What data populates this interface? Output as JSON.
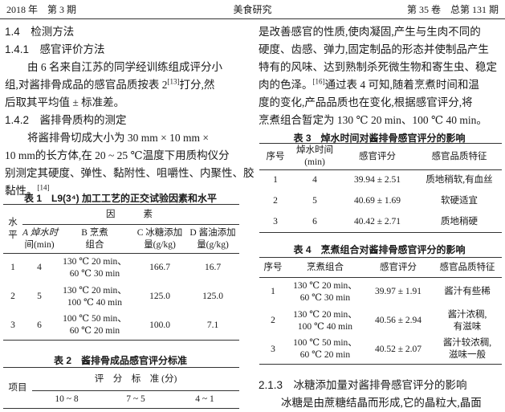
{
  "header": {
    "left": "2018 年　第 3 期",
    "center": "美食研究",
    "right": "第 35 卷　总第 131 期"
  },
  "left": {
    "s14": "1.4　检测方法",
    "s141": "1.4.1　感官评价方法",
    "p1": [
      "由 6 名来自江苏的同学经训练组成评分小",
      "组,对酱排骨成品的感官品质按表 2",
      "打分,然",
      "后取其平均值 ± 标准差。"
    ],
    "p1_ref": "[13]",
    "s142": "1.4.2　酱排骨质构的测定",
    "p2": [
      "将酱排骨切成大小为 30 mm × 10 mm ×",
      "10 mm的长方体,在 20 ~ 25 ℃温度下用质构仪分",
      "别测定其硬度、弹性、黏附性、咀嚼性、内聚性、胶",
      "黏性。"
    ],
    "p2_ref": "[14]"
  },
  "table1": {
    "caption": "表 1　L9(3⁴) 加工工艺的正交试验因素和水平",
    "col_level": "水平",
    "factor": "因　　素",
    "cols": [
      [
        "A 焯水时",
        "间(min)"
      ],
      [
        "B 烹煮",
        "组合"
      ],
      [
        "C 冰糖添加",
        "量(g/kg)"
      ],
      [
        "D 酱油添加",
        "量(g/kg)"
      ]
    ],
    "rows": [
      {
        "level": "1",
        "a": "4",
        "b": [
          "130 ℃ 20 min、",
          "60 ℃ 30 min"
        ],
        "c": "166.7",
        "d": "16.7"
      },
      {
        "level": "2",
        "a": "5",
        "b": [
          "130 ℃ 20 min、",
          "100 ℃ 40 min"
        ],
        "c": "125.0",
        "d": "125.0"
      },
      {
        "level": "3",
        "a": "6",
        "b": [
          "100 ℃ 50 min、",
          "60 ℃ 20 min"
        ],
        "c": "100.0",
        "d": "7.1"
      }
    ]
  },
  "table2": {
    "caption": "表 2　酱排骨成品感官评分标准",
    "col_item": "项目",
    "group": "评　分　标　准 (分)",
    "cols": [
      "10 ~ 8",
      "7 ~ 5",
      "4 ~ 1"
    ]
  },
  "right": {
    "p1": [
      "是改善感官的性质,使肉凝固,产生与生肉不同的",
      "硬度、齿感、弹力,固定制品的形态并使制品产生",
      "特有的风味、达到熟制杀死微生物和寄生虫、稳定",
      "肉的色泽。",
      "通过表 4 可知,随着烹煮时间和温",
      "度的变化,产品品质也在变化,根据感官评分,将",
      "烹煮组合暂定为 130 ℃ 20 min、100 ℃ 40 min。"
    ],
    "p1_ref": "[16]",
    "s213": "2.1.3　冰糖添加量对酱排骨感官评分的影响",
    "p2": "冰糖是由蔗糖结晶而形成,它的晶粒大,晶面"
  },
  "table3": {
    "caption": "表 3　焯水时间对酱排骨感官评分的影响",
    "cols": [
      "序号",
      [
        "焯水时间",
        "(min)"
      ],
      "感官评分",
      "感官品质特征"
    ],
    "rows": [
      {
        "no": "1",
        "t": "4",
        "score": "39.94 ± 2.51",
        "desc": "质地稍软,有血丝"
      },
      {
        "no": "2",
        "t": "5",
        "score": "40.69 ± 1.69",
        "desc": "软硬适宜"
      },
      {
        "no": "3",
        "t": "6",
        "score": "40.42 ± 2.71",
        "desc": "质地稍硬"
      }
    ]
  },
  "table4": {
    "caption": "表 4　烹煮组合对酱排骨感官评分的影响",
    "cols": [
      "序号",
      "烹煮组合",
      "感官评分",
      "感官品质特征"
    ],
    "rows": [
      {
        "no": "1",
        "combo": [
          "130 ℃ 20 min、",
          "60 ℃ 30 min"
        ],
        "score": "39.97 ± 1.91",
        "desc": [
          "酱汁有些稀",
          ""
        ]
      },
      {
        "no": "2",
        "combo": [
          "130 ℃ 20 min、",
          "100 ℃ 40 min"
        ],
        "score": "40.56 ± 2.94",
        "desc": [
          "酱汁浓稠,",
          "有滋味"
        ]
      },
      {
        "no": "3",
        "combo": [
          "100 ℃ 50 min、",
          "60 ℃ 20 min"
        ],
        "score": "40.52 ± 2.07",
        "desc": [
          "酱汁较浓稠,",
          "滋味一般"
        ]
      }
    ]
  }
}
